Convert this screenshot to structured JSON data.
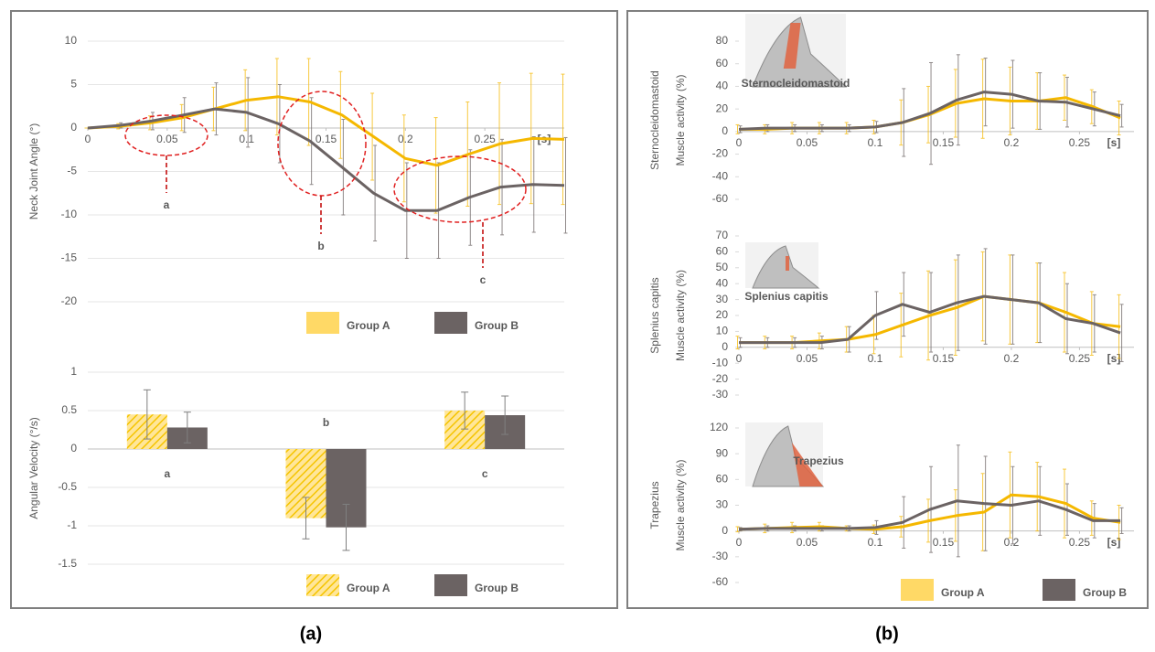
{
  "captions": [
    "(a)",
    "(b)"
  ],
  "chart_data": [
    {
      "type": "line",
      "ylabel": "Neck Joint Angle (°)",
      "xlabel": "[s]",
      "x": [
        0,
        0.02,
        0.04,
        0.06,
        0.08,
        0.1,
        0.12,
        0.14,
        0.16,
        0.18,
        0.2,
        0.22,
        0.24,
        0.26,
        0.28,
        0.3
      ],
      "xlim": [
        0,
        0.3
      ],
      "xticks": [
        0,
        0.05,
        0.1,
        0.15,
        0.2,
        0.25
      ],
      "ylim": [
        -20,
        10
      ],
      "yticks": [
        -20,
        -15,
        -10,
        -5,
        0,
        5,
        10
      ],
      "grid": true,
      "annotations": [
        "a",
        "b",
        "c"
      ],
      "legend": "bottom",
      "series": [
        {
          "name": "Group A",
          "color": "#f5b800",
          "values": [
            0,
            0.2,
            0.6,
            1.2,
            2.2,
            3.2,
            3.6,
            3.0,
            1.5,
            -1.0,
            -3.5,
            -4.3,
            -3.0,
            -1.8,
            -1.2,
            -1.3
          ],
          "errors": [
            0,
            0.3,
            0.8,
            1.5,
            2.5,
            3.5,
            4.4,
            5,
            5,
            5,
            5,
            5.5,
            6,
            7,
            7.5,
            7.5
          ]
        },
        {
          "name": "Group B",
          "color": "#6b6363",
          "values": [
            0,
            0.3,
            0.8,
            1.5,
            2.2,
            1.8,
            0.5,
            -1.5,
            -4.5,
            -7.5,
            -9.5,
            -9.5,
            -8.0,
            -6.8,
            -6.5,
            -6.6
          ],
          "errors": [
            0,
            0.3,
            1,
            2,
            3,
            4,
            4.5,
            5,
            5.5,
            5.5,
            5.5,
            5.5,
            5.5,
            5.5,
            5.5,
            5.5
          ]
        }
      ]
    },
    {
      "type": "bar",
      "ylabel": "Angular Velocity (°/s)",
      "categories": [
        "a",
        "b",
        "c"
      ],
      "ylim": [
        -1.5,
        1
      ],
      "yticks": [
        -1.5,
        -1,
        -0.5,
        0,
        0.5,
        1
      ],
      "grid": true,
      "legend": "bottom",
      "series": [
        {
          "name": "Group A",
          "color": "#f5c400",
          "values": [
            0.45,
            -0.9,
            0.5
          ],
          "errors": [
            0.32,
            0.27,
            0.24
          ]
        },
        {
          "name": "Group B",
          "color": "#6b6363",
          "values": [
            0.28,
            -1.02,
            0.44
          ],
          "errors": [
            0.2,
            0.3,
            0.25
          ]
        }
      ]
    },
    {
      "type": "line",
      "title": "Sternocleidomastoid",
      "ylabel": "Muscle activity (%)",
      "xlabel": "[s]",
      "x": [
        0,
        0.02,
        0.04,
        0.06,
        0.08,
        0.1,
        0.12,
        0.14,
        0.16,
        0.18,
        0.2,
        0.22,
        0.24,
        0.26,
        0.28
      ],
      "xlim": [
        0,
        0.29
      ],
      "xticks": [
        0,
        0.05,
        0.1,
        0.15,
        0.2,
        0.25
      ],
      "ylim": [
        -60,
        80
      ],
      "yticks": [
        -60,
        -40,
        -20,
        0,
        20,
        40,
        60,
        80
      ],
      "grid": false,
      "series": [
        {
          "name": "Group A",
          "color": "#f5b800",
          "values": [
            2,
            2,
            3,
            3,
            3,
            4,
            8,
            15,
            25,
            29,
            27,
            27,
            30,
            22,
            12
          ],
          "errors": [
            4,
            4,
            5,
            5,
            5,
            6,
            20,
            25,
            30,
            35,
            30,
            25,
            20,
            15,
            15
          ]
        },
        {
          "name": "Group B",
          "color": "#6b6363",
          "values": [
            2,
            3,
            3,
            3,
            3,
            4,
            8,
            16,
            28,
            35,
            33,
            27,
            26,
            20,
            14
          ],
          "errors": [
            3,
            3,
            3,
            3,
            3,
            5,
            30,
            45,
            40,
            30,
            30,
            25,
            22,
            15,
            10
          ]
        }
      ]
    },
    {
      "type": "line",
      "title": "Splenius capitis",
      "ylabel": "Muscle activity (%)",
      "xlabel": "[s]",
      "x": [
        0,
        0.02,
        0.04,
        0.06,
        0.08,
        0.1,
        0.12,
        0.14,
        0.16,
        0.18,
        0.2,
        0.22,
        0.24,
        0.26,
        0.28
      ],
      "xlim": [
        0,
        0.29
      ],
      "xticks": [
        0,
        0.05,
        0.1,
        0.15,
        0.2,
        0.25
      ],
      "ylim": [
        -30,
        70
      ],
      "yticks": [
        -30,
        -20,
        -10,
        0,
        10,
        20,
        30,
        40,
        50,
        60,
        70
      ],
      "grid": false,
      "series": [
        {
          "name": "Group A",
          "color": "#f5b800",
          "values": [
            3,
            3,
            3,
            4,
            5,
            8,
            14,
            20,
            25,
            32,
            30,
            28,
            22,
            15,
            13
          ],
          "errors": [
            4,
            4,
            4,
            5,
            8,
            12,
            20,
            28,
            30,
            28,
            28,
            25,
            25,
            20,
            20
          ]
        },
        {
          "name": "Group B",
          "color": "#6b6363",
          "values": [
            3,
            3,
            3,
            3,
            5,
            20,
            27,
            22,
            28,
            32,
            30,
            28,
            18,
            15,
            9
          ],
          "errors": [
            3,
            3,
            3,
            4,
            8,
            15,
            20,
            25,
            30,
            30,
            28,
            25,
            22,
            18,
            18
          ]
        }
      ]
    },
    {
      "type": "line",
      "title": "Trapezius",
      "ylabel": "Muscle activity (%)",
      "xlabel": "[s]",
      "x": [
        0,
        0.02,
        0.04,
        0.06,
        0.08,
        0.1,
        0.12,
        0.14,
        0.16,
        0.18,
        0.2,
        0.22,
        0.24,
        0.26,
        0.28
      ],
      "xlim": [
        0,
        0.29
      ],
      "xticks": [
        0,
        0.05,
        0.1,
        0.15,
        0.2,
        0.25
      ],
      "ylim": [
        -60,
        120
      ],
      "yticks": [
        -60,
        -30,
        0,
        30,
        60,
        90,
        120
      ],
      "grid": false,
      "legend": "bottom",
      "series": [
        {
          "name": "Group A",
          "color": "#f5b800",
          "values": [
            2,
            3,
            4,
            5,
            3,
            2,
            5,
            12,
            18,
            22,
            42,
            40,
            32,
            15,
            10
          ],
          "errors": [
            3,
            5,
            6,
            5,
            3,
            5,
            12,
            25,
            30,
            45,
            50,
            40,
            40,
            20,
            20
          ]
        },
        {
          "name": "Group B",
          "color": "#6b6363",
          "values": [
            2,
            3,
            3,
            3,
            3,
            4,
            10,
            25,
            35,
            32,
            30,
            35,
            25,
            12,
            12
          ],
          "errors": [
            2,
            3,
            3,
            3,
            3,
            8,
            30,
            50,
            65,
            55,
            45,
            40,
            30,
            20,
            15
          ]
        }
      ]
    }
  ]
}
